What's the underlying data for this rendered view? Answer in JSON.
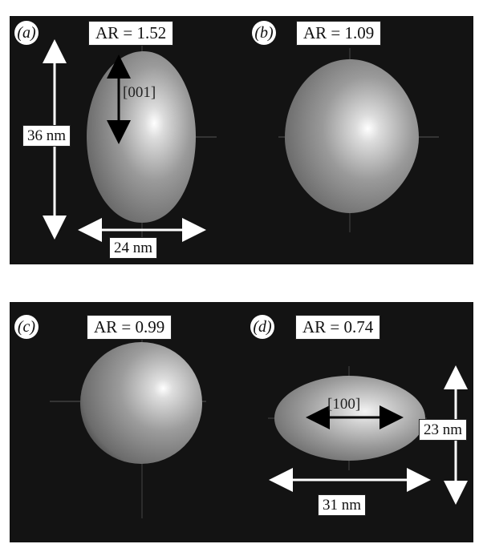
{
  "panels": [
    {
      "label": "(a)",
      "ar": "AR = 1.52",
      "dims": [
        "36 nm",
        "24 nm"
      ],
      "direction": "[001]"
    },
    {
      "label": "(b)",
      "ar": "AR = 1.09"
    },
    {
      "label": "(c)",
      "ar": "AR = 0.99"
    },
    {
      "label": "(d)",
      "ar": "AR = 0.74",
      "dims": [
        "23 nm",
        "31 nm"
      ],
      "direction": "[100]"
    }
  ],
  "colors": {
    "background": "#131313",
    "particle": "#8a8a8a",
    "arrow_light": "#ffffff",
    "arrow_dark": "#000000"
  }
}
